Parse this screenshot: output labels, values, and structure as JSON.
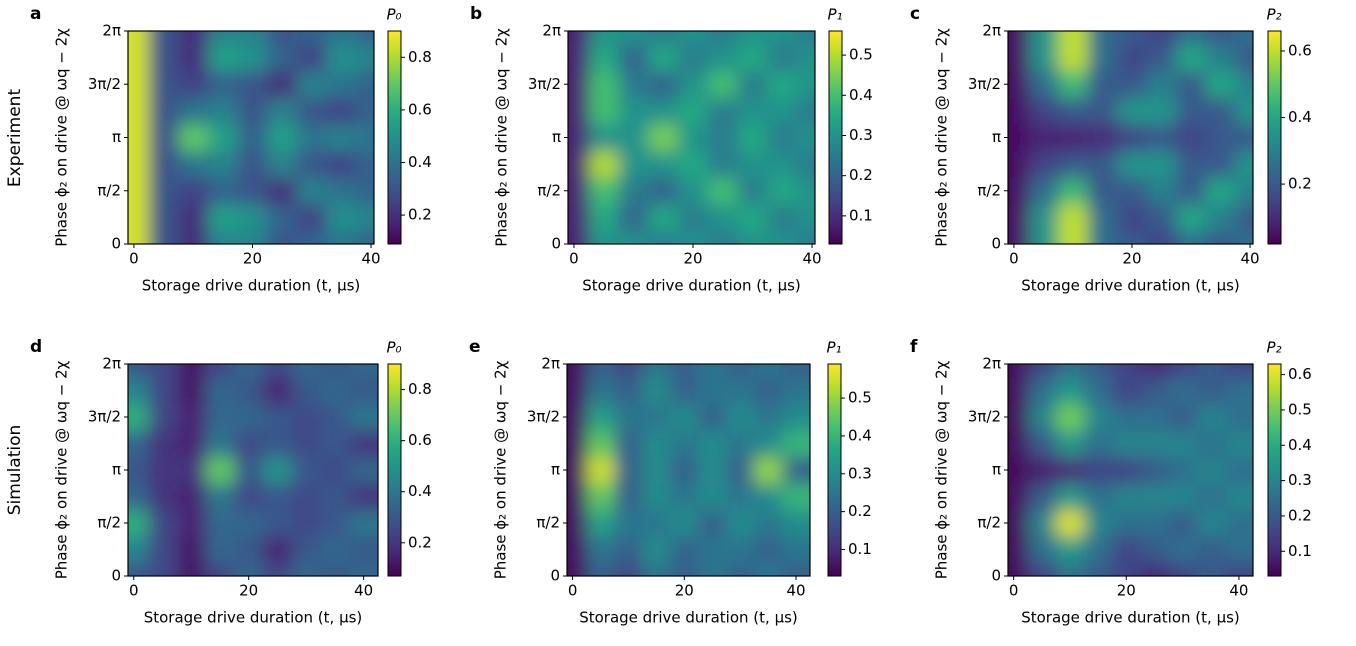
{
  "figure": {
    "row_labels": [
      "Experiment",
      "Simulation"
    ]
  },
  "chart_data": [
    {
      "type": "heatmap",
      "label": "a",
      "colormap": "viridis",
      "colorbar_label": "P₀",
      "xlabel": "Storage drive duration (t, μs)",
      "ylabel": "Phase ϕ₂ on drive @ ωq − 2χ",
      "xlim": [
        -1,
        40.5
      ],
      "ylim": [
        0,
        6.2832
      ],
      "xticks": [
        0,
        20,
        40
      ],
      "yticks": [
        0,
        {
          "value": 1.5708,
          "label": "π/2"
        },
        {
          "value": 3.1416,
          "label": "π"
        },
        {
          "value": 4.7124,
          "label": "3π/2"
        },
        {
          "value": 6.2832,
          "label": "2π"
        }
      ],
      "zlim": [
        0.09,
        0.9
      ],
      "zticks": [
        0.2,
        0.4,
        0.6,
        0.8
      ],
      "x": [
        0,
        5,
        10,
        15,
        20,
        25,
        30,
        35,
        40
      ],
      "y": [
        0,
        0.7854,
        1.5708,
        2.3562,
        3.1416,
        3.927,
        4.7124,
        5.4978,
        6.2832
      ],
      "z": [
        [
          0.85,
          0.3,
          0.2,
          0.45,
          0.45,
          0.3,
          0.35,
          0.4,
          0.35
        ],
        [
          0.85,
          0.3,
          0.2,
          0.55,
          0.5,
          0.35,
          0.25,
          0.5,
          0.45
        ],
        [
          0.85,
          0.3,
          0.25,
          0.35,
          0.3,
          0.2,
          0.45,
          0.4,
          0.35
        ],
        [
          0.85,
          0.3,
          0.4,
          0.45,
          0.3,
          0.45,
          0.3,
          0.25,
          0.35
        ],
        [
          0.85,
          0.3,
          0.7,
          0.55,
          0.35,
          0.55,
          0.4,
          0.45,
          0.4
        ],
        [
          0.85,
          0.3,
          0.4,
          0.45,
          0.3,
          0.45,
          0.3,
          0.25,
          0.35
        ],
        [
          0.85,
          0.3,
          0.25,
          0.35,
          0.3,
          0.2,
          0.45,
          0.4,
          0.35
        ],
        [
          0.85,
          0.3,
          0.2,
          0.55,
          0.5,
          0.35,
          0.25,
          0.5,
          0.45
        ],
        [
          0.85,
          0.3,
          0.2,
          0.45,
          0.45,
          0.3,
          0.35,
          0.4,
          0.35
        ]
      ]
    },
    {
      "type": "heatmap",
      "label": "b",
      "colormap": "viridis",
      "colorbar_label": "P₁",
      "xlabel": "Storage drive duration (t, μs)",
      "ylabel": "Phase ϕ₂ on drive @ ωq − 2χ",
      "xlim": [
        -1,
        40.5
      ],
      "ylim": [
        0,
        6.2832
      ],
      "xticks": [
        0,
        20,
        40
      ],
      "yticks": [
        0,
        {
          "value": 1.5708,
          "label": "π/2"
        },
        {
          "value": 3.1416,
          "label": "π"
        },
        {
          "value": 4.7124,
          "label": "3π/2"
        },
        {
          "value": 6.2832,
          "label": "2π"
        }
      ],
      "zlim": [
        0.03,
        0.56
      ],
      "zticks": [
        0.1,
        0.2,
        0.3,
        0.4,
        0.5
      ],
      "x": [
        0,
        5,
        10,
        15,
        20,
        25,
        30,
        35,
        40
      ],
      "y": [
        0,
        0.7854,
        1.5708,
        2.3562,
        3.1416,
        3.927,
        4.7124,
        5.4978,
        6.2832
      ],
      "z": [
        [
          0.08,
          0.3,
          0.3,
          0.25,
          0.3,
          0.25,
          0.3,
          0.3,
          0.25
        ],
        [
          0.08,
          0.35,
          0.2,
          0.35,
          0.25,
          0.3,
          0.35,
          0.25,
          0.3
        ],
        [
          0.08,
          0.4,
          0.25,
          0.2,
          0.3,
          0.4,
          0.25,
          0.35,
          0.3
        ],
        [
          0.08,
          0.5,
          0.3,
          0.3,
          0.35,
          0.25,
          0.3,
          0.3,
          0.25
        ],
        [
          0.08,
          0.3,
          0.3,
          0.45,
          0.3,
          0.25,
          0.35,
          0.25,
          0.3
        ],
        [
          0.08,
          0.4,
          0.3,
          0.3,
          0.35,
          0.25,
          0.3,
          0.3,
          0.25
        ],
        [
          0.08,
          0.4,
          0.25,
          0.2,
          0.3,
          0.4,
          0.25,
          0.35,
          0.3
        ],
        [
          0.08,
          0.35,
          0.2,
          0.35,
          0.25,
          0.3,
          0.35,
          0.25,
          0.3
        ],
        [
          0.08,
          0.3,
          0.3,
          0.25,
          0.3,
          0.25,
          0.3,
          0.3,
          0.25
        ]
      ]
    },
    {
      "type": "heatmap",
      "label": "c",
      "colormap": "viridis",
      "colorbar_label": "P₂",
      "xlabel": "Storage drive duration (t, μs)",
      "ylabel": "Phase ϕ₂ on drive @ ωq − 2χ",
      "xlim": [
        -1,
        40.5
      ],
      "ylim": [
        0,
        6.2832
      ],
      "xticks": [
        0,
        20,
        40
      ],
      "yticks": [
        0,
        {
          "value": 1.5708,
          "label": "π/2"
        },
        {
          "value": 3.1416,
          "label": "π"
        },
        {
          "value": 4.7124,
          "label": "3π/2"
        },
        {
          "value": 6.2832,
          "label": "2π"
        }
      ],
      "zlim": [
        0.02,
        0.66
      ],
      "zticks": [
        0.2,
        0.4,
        0.6
      ],
      "x": [
        0,
        5,
        10,
        15,
        20,
        25,
        30,
        35,
        40
      ],
      "y": [
        0,
        0.7854,
        1.5708,
        2.3562,
        3.1416,
        3.927,
        4.7124,
        5.4978,
        6.2832
      ],
      "z": [
        [
          0.05,
          0.35,
          0.6,
          0.25,
          0.2,
          0.15,
          0.25,
          0.2,
          0.25
        ],
        [
          0.05,
          0.35,
          0.6,
          0.25,
          0.15,
          0.2,
          0.4,
          0.3,
          0.2
        ],
        [
          0.05,
          0.25,
          0.45,
          0.2,
          0.2,
          0.3,
          0.2,
          0.4,
          0.3
        ],
        [
          0.05,
          0.15,
          0.2,
          0.2,
          0.35,
          0.35,
          0.2,
          0.2,
          0.35
        ],
        [
          0.05,
          0.08,
          0.08,
          0.1,
          0.15,
          0.2,
          0.15,
          0.2,
          0.2
        ],
        [
          0.05,
          0.15,
          0.2,
          0.2,
          0.35,
          0.35,
          0.2,
          0.2,
          0.35
        ],
        [
          0.05,
          0.25,
          0.45,
          0.2,
          0.2,
          0.3,
          0.2,
          0.4,
          0.3
        ],
        [
          0.05,
          0.35,
          0.6,
          0.25,
          0.15,
          0.2,
          0.4,
          0.3,
          0.2
        ],
        [
          0.05,
          0.35,
          0.6,
          0.25,
          0.2,
          0.15,
          0.25,
          0.2,
          0.25
        ]
      ]
    },
    {
      "type": "heatmap",
      "label": "d",
      "colormap": "viridis",
      "colorbar_label": "P₀",
      "xlabel": "Storage drive duration (t, μs)",
      "ylabel": "Phase ϕ₂ on drive @ ωq − 2χ",
      "xlim": [
        -1,
        42.5
      ],
      "ylim": [
        0,
        6.2832
      ],
      "xticks": [
        0,
        20,
        40
      ],
      "yticks": [
        0,
        {
          "value": 1.5708,
          "label": "π/2"
        },
        {
          "value": 3.1416,
          "label": "π"
        },
        {
          "value": 4.7124,
          "label": "3π/2"
        },
        {
          "value": 6.2832,
          "label": "2π"
        }
      ],
      "zlim": [
        0.07,
        0.9
      ],
      "zticks": [
        0.2,
        0.4,
        0.6,
        0.8
      ],
      "x": [
        0,
        5,
        10,
        15,
        20,
        25,
        30,
        35,
        40
      ],
      "y": [
        0,
        0.7854,
        1.5708,
        2.3562,
        3.1416,
        3.927,
        4.7124,
        5.4978,
        6.2832
      ],
      "z": [
        [
          0.3,
          0.25,
          0.12,
          0.25,
          0.35,
          0.25,
          0.35,
          0.3,
          0.35
        ],
        [
          0.45,
          0.25,
          0.12,
          0.35,
          0.3,
          0.15,
          0.3,
          0.35,
          0.3
        ],
        [
          0.6,
          0.25,
          0.15,
          0.35,
          0.35,
          0.3,
          0.25,
          0.3,
          0.4
        ],
        [
          0.35,
          0.2,
          0.15,
          0.4,
          0.25,
          0.3,
          0.25,
          0.3,
          0.2
        ],
        [
          0.3,
          0.2,
          0.2,
          0.7,
          0.3,
          0.5,
          0.3,
          0.25,
          0.35
        ],
        [
          0.35,
          0.2,
          0.15,
          0.4,
          0.25,
          0.3,
          0.25,
          0.3,
          0.2
        ],
        [
          0.6,
          0.25,
          0.15,
          0.35,
          0.35,
          0.3,
          0.25,
          0.3,
          0.4
        ],
        [
          0.45,
          0.25,
          0.12,
          0.35,
          0.3,
          0.15,
          0.3,
          0.35,
          0.3
        ],
        [
          0.3,
          0.25,
          0.12,
          0.25,
          0.35,
          0.25,
          0.35,
          0.3,
          0.35
        ]
      ]
    },
    {
      "type": "heatmap",
      "label": "e",
      "colormap": "viridis",
      "colorbar_label": "P₁",
      "xlabel": "Storage drive duration (t, μs)",
      "ylabel": "Phase ϕ₂ on drive @ ωq − 2χ",
      "xlim": [
        -1,
        42.5
      ],
      "ylim": [
        0,
        6.2832
      ],
      "xticks": [
        0,
        20,
        40
      ],
      "yticks": [
        0,
        {
          "value": 1.5708,
          "label": "π/2"
        },
        {
          "value": 3.1416,
          "label": "π"
        },
        {
          "value": 4.7124,
          "label": "3π/2"
        },
        {
          "value": 6.2832,
          "label": "2π"
        }
      ],
      "zlim": [
        0.03,
        0.59
      ],
      "zticks": [
        0.1,
        0.2,
        0.3,
        0.4,
        0.5
      ],
      "x": [
        0,
        5,
        10,
        15,
        20,
        25,
        30,
        35,
        40
      ],
      "y": [
        0,
        0.7854,
        1.5708,
        2.3562,
        3.1416,
        3.927,
        4.7124,
        5.4978,
        6.2832
      ],
      "z": [
        [
          0.05,
          0.2,
          0.15,
          0.25,
          0.2,
          0.25,
          0.2,
          0.25,
          0.2
        ],
        [
          0.05,
          0.25,
          0.2,
          0.3,
          0.2,
          0.25,
          0.25,
          0.2,
          0.25
        ],
        [
          0.05,
          0.35,
          0.25,
          0.25,
          0.3,
          0.2,
          0.3,
          0.25,
          0.3
        ],
        [
          0.05,
          0.45,
          0.2,
          0.3,
          0.25,
          0.3,
          0.25,
          0.3,
          0.4
        ],
        [
          0.05,
          0.55,
          0.2,
          0.3,
          0.2,
          0.3,
          0.2,
          0.5,
          0.2
        ],
        [
          0.05,
          0.45,
          0.2,
          0.3,
          0.25,
          0.3,
          0.25,
          0.3,
          0.4
        ],
        [
          0.05,
          0.35,
          0.25,
          0.25,
          0.3,
          0.2,
          0.3,
          0.25,
          0.3
        ],
        [
          0.05,
          0.25,
          0.2,
          0.3,
          0.2,
          0.25,
          0.25,
          0.2,
          0.25
        ],
        [
          0.05,
          0.2,
          0.15,
          0.25,
          0.2,
          0.25,
          0.2,
          0.25,
          0.2
        ]
      ]
    },
    {
      "type": "heatmap",
      "label": "f",
      "colormap": "viridis",
      "colorbar_label": "P₂",
      "xlabel": "Storage drive duration (t, μs)",
      "ylabel": "Phase ϕ₂ on drive @ ωq − 2χ",
      "xlim": [
        -1,
        42.5
      ],
      "ylim": [
        0,
        6.2832
      ],
      "xticks": [
        0,
        20,
        40
      ],
      "yticks": [
        0,
        {
          "value": 1.5708,
          "label": "π/2"
        },
        {
          "value": 3.1416,
          "label": "π"
        },
        {
          "value": 4.7124,
          "label": "3π/2"
        },
        {
          "value": 6.2832,
          "label": "2π"
        }
      ],
      "zlim": [
        0.03,
        0.63
      ],
      "zticks": [
        0.1,
        0.2,
        0.3,
        0.4,
        0.5,
        0.6
      ],
      "x": [
        0,
        5,
        10,
        15,
        20,
        25,
        30,
        35,
        40
      ],
      "y": [
        0,
        0.7854,
        1.5708,
        2.3562,
        3.1416,
        3.927,
        4.7124,
        5.4978,
        6.2832
      ],
      "z": [
        [
          0.05,
          0.15,
          0.25,
          0.2,
          0.15,
          0.1,
          0.15,
          0.2,
          0.15
        ],
        [
          0.05,
          0.25,
          0.35,
          0.25,
          0.15,
          0.2,
          0.25,
          0.2,
          0.25
        ],
        [
          0.05,
          0.3,
          0.6,
          0.3,
          0.25,
          0.25,
          0.2,
          0.3,
          0.25
        ],
        [
          0.05,
          0.2,
          0.35,
          0.25,
          0.3,
          0.3,
          0.3,
          0.25,
          0.3
        ],
        [
          0.05,
          0.08,
          0.1,
          0.15,
          0.15,
          0.2,
          0.25,
          0.3,
          0.25
        ],
        [
          0.05,
          0.2,
          0.35,
          0.25,
          0.3,
          0.3,
          0.3,
          0.25,
          0.3
        ],
        [
          0.05,
          0.3,
          0.5,
          0.3,
          0.25,
          0.25,
          0.2,
          0.3,
          0.25
        ],
        [
          0.05,
          0.25,
          0.35,
          0.25,
          0.15,
          0.2,
          0.25,
          0.2,
          0.25
        ],
        [
          0.05,
          0.15,
          0.25,
          0.2,
          0.15,
          0.1,
          0.15,
          0.2,
          0.15
        ]
      ]
    }
  ]
}
